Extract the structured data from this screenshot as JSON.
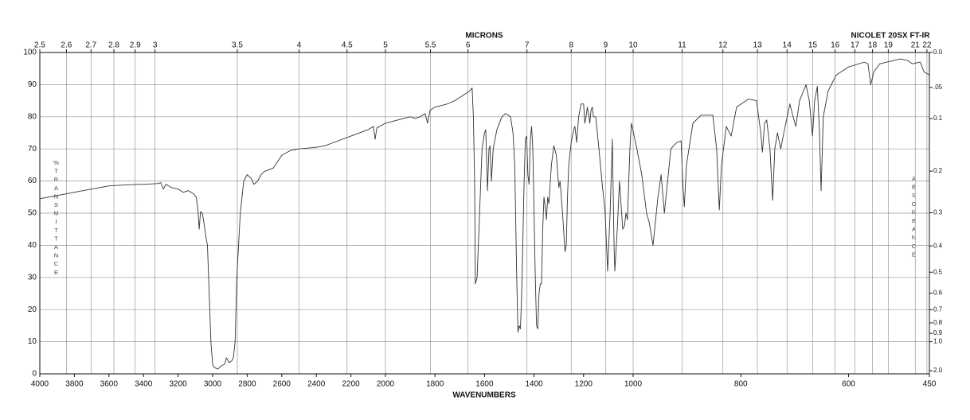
{
  "chart_data": {
    "type": "line",
    "top_label": "MICRONS",
    "instrument": "NICOLET 20SX FT-IR",
    "xlabel": "WAVENUMBERS",
    "ylabel": "%TRANSMITTANCE",
    "y2label": "ABSORBANCE",
    "x": [
      4000,
      3950,
      3900,
      3850,
      3800,
      3750,
      3700,
      3650,
      3600,
      3500,
      3400,
      3320,
      3300,
      3285,
      3270,
      3240,
      3200,
      3170,
      3140,
      3110,
      3095,
      3085,
      3078,
      3070,
      3060,
      3050,
      3040,
      3030,
      3020,
      3010,
      3000,
      2990,
      2970,
      2950,
      2930,
      2920,
      2905,
      2890,
      2880,
      2870,
      2860,
      2840,
      2820,
      2800,
      2780,
      2760,
      2740,
      2720,
      2700,
      2650,
      2600,
      2550,
      2500,
      2400,
      2350,
      2300,
      2200,
      2100,
      2070,
      2060,
      2050,
      2000,
      1950,
      1900,
      1880,
      1860,
      1840,
      1830,
      1820,
      1800,
      1750,
      1720,
      1700,
      1680,
      1660,
      1650,
      1645,
      1640,
      1637,
      1630,
      1620,
      1610,
      1600,
      1595,
      1588,
      1582,
      1578,
      1572,
      1565,
      1550,
      1530,
      1515,
      1495,
      1485,
      1478,
      1470,
      1465,
      1460,
      1455,
      1450,
      1440,
      1435,
      1430,
      1425,
      1420,
      1415,
      1410,
      1405,
      1400,
      1395,
      1390,
      1385,
      1380,
      1375,
      1370,
      1365,
      1360,
      1355,
      1350,
      1345,
      1340,
      1330,
      1320,
      1310,
      1300,
      1295,
      1285,
      1275,
      1270,
      1265,
      1260,
      1250,
      1240,
      1235,
      1228,
      1220,
      1210,
      1200,
      1195,
      1190,
      1185,
      1180,
      1175,
      1170,
      1165,
      1160,
      1151,
      1138,
      1126,
      1113,
      1103,
      1093,
      1084,
      1077,
      1074,
      1064,
      1055,
      1042,
      1035,
      1029,
      1023,
      1013,
      1007,
      993,
      984,
      975,
      970,
      963,
      954,
      948,
      942,
      930,
      919,
      911,
      908,
      905,
      901,
      889,
      874,
      852,
      845,
      840,
      836,
      827,
      818,
      808,
      786,
      771,
      763,
      760,
      756,
      752,
      746,
      741,
      737,
      732,
      726,
      719,
      709,
      703,
      698,
      691,
      679,
      673,
      667,
      663,
      658,
      654,
      651,
      647,
      638,
      623,
      600,
      571,
      564,
      559,
      553,
      542,
      504,
      490,
      482,
      467,
      460,
      450
    ],
    "values": [
      54.5,
      55,
      55.5,
      56,
      56.5,
      57,
      57.5,
      58,
      58.5,
      58.8,
      59,
      59.2,
      59.5,
      57.5,
      59,
      58,
      57.5,
      56.5,
      57,
      56,
      55,
      51,
      45,
      50.5,
      50,
      47,
      43,
      40,
      25,
      10,
      3,
      2,
      1.5,
      2.5,
      3,
      5,
      3.5,
      4,
      5,
      10,
      30,
      50,
      60,
      62,
      61,
      59,
      60,
      62,
      63,
      64,
      68,
      69.5,
      70,
      70.5,
      71,
      72,
      74,
      76,
      77,
      73,
      76.5,
      78,
      79,
      80,
      79.5,
      80,
      81,
      78,
      82,
      83,
      84,
      85,
      86,
      87,
      88,
      89,
      80,
      60,
      28,
      30,
      50,
      70,
      75,
      76,
      57,
      70,
      71,
      60,
      70,
      76,
      80,
      81,
      80,
      75,
      65,
      30,
      13,
      15,
      14,
      25,
      60,
      73,
      74,
      62,
      59,
      73,
      77,
      70,
      50,
      30,
      15,
      14,
      25,
      28,
      28,
      45,
      55,
      52,
      48,
      55,
      53,
      65,
      71,
      68,
      58,
      60,
      50,
      38,
      40,
      55,
      65,
      72,
      76,
      77,
      72,
      80,
      84,
      84,
      78,
      80,
      83,
      81,
      78,
      82,
      83,
      80,
      80,
      70,
      60,
      50,
      32,
      50,
      73,
      40,
      32,
      45,
      60,
      45,
      46,
      50,
      48,
      70,
      78,
      70,
      62,
      50,
      47,
      40,
      55,
      62,
      50,
      70,
      72,
      72.5,
      60,
      52,
      65,
      78,
      80.5,
      80.5,
      70,
      51,
      65,
      77,
      74,
      83,
      85.5,
      85,
      75,
      69,
      78,
      79,
      70,
      54,
      70,
      75,
      70,
      76,
      84,
      80,
      77,
      85,
      90,
      85,
      74,
      85,
      89.5,
      75,
      57,
      80,
      88,
      93,
      95.5,
      97,
      96.5,
      90,
      94,
      96.5,
      98,
      97.5,
      96.5,
      97,
      94,
      93
    ],
    "color": "#333333",
    "xlim": [
      4000,
      450
    ],
    "xscale_breaks": [
      2000,
      1000
    ],
    "xticks": [
      4000,
      3800,
      3600,
      3400,
      3200,
      3000,
      2800,
      2600,
      2400,
      2200,
      2000,
      1800,
      1600,
      1400,
      1200,
      1000,
      800,
      600,
      450
    ],
    "x2scale": "microns",
    "x2ticks": [
      2.5,
      2.6,
      2.7,
      2.8,
      2.9,
      3,
      3.5,
      4,
      4.5,
      5,
      5.5,
      6,
      7,
      8,
      9,
      10,
      11,
      12,
      13,
      14,
      15,
      16,
      17,
      18,
      19,
      21,
      22
    ],
    "ylim": [
      0,
      100
    ],
    "yticks": [
      0,
      10,
      20,
      30,
      40,
      50,
      60,
      70,
      80,
      90,
      100
    ],
    "y2scale": "absorbance",
    "y2ticks": [
      {
        "value": 0,
        "label": "0.0"
      },
      {
        "value": 0.05,
        "label": ".05"
      },
      0.1,
      0.2,
      0.3,
      0.4,
      0.5,
      0.6,
      0.7,
      0.8,
      0.9,
      {
        "value": 1,
        "label": "1.0"
      },
      {
        "value": 2,
        "label": "2.0"
      }
    ],
    "grid": true
  }
}
